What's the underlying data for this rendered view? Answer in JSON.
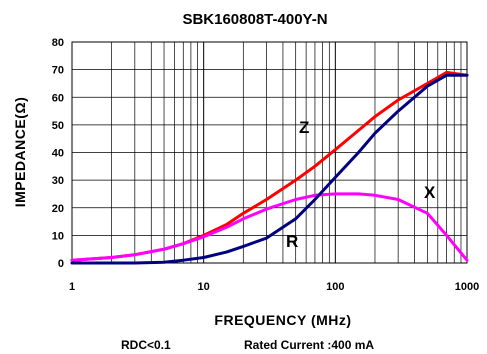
{
  "chart_data": {
    "type": "line",
    "title": "SBK160808T-400Y-N",
    "xlabel": "FREQUENCY (MHz)",
    "ylabel": "IMPEDANCE(Ω)",
    "x_scale": "log",
    "xlim": [
      1,
      1000
    ],
    "ylim": [
      0,
      80
    ],
    "x_ticks": [
      "1",
      "10",
      "100",
      "1000"
    ],
    "y_ticks": [
      "0",
      "10",
      "20",
      "30",
      "40",
      "50",
      "60",
      "70",
      "80"
    ],
    "grid": true,
    "series": [
      {
        "name": "Z",
        "color": "#ff0000",
        "x": [
          1,
          2,
          3,
          5,
          7,
          10,
          15,
          20,
          30,
          50,
          70,
          100,
          150,
          200,
          300,
          500,
          700,
          1000
        ],
        "y": [
          1,
          2,
          3,
          5,
          7,
          10,
          14,
          18,
          23,
          30,
          35,
          41,
          48,
          53,
          59,
          65,
          69,
          68
        ]
      },
      {
        "name": "X",
        "color": "#ff00ff",
        "x": [
          1,
          2,
          3,
          5,
          7,
          10,
          15,
          20,
          30,
          50,
          70,
          100,
          150,
          200,
          300,
          500,
          700,
          1000
        ],
        "y": [
          1,
          2,
          3,
          5,
          7,
          9.5,
          13,
          16,
          19.5,
          23,
          24.5,
          25,
          25,
          24.5,
          23,
          18,
          10,
          1
        ]
      },
      {
        "name": "R",
        "color": "#000080",
        "x": [
          1,
          3,
          5,
          7,
          10,
          15,
          20,
          30,
          50,
          70,
          100,
          150,
          200,
          300,
          500,
          700,
          1000
        ],
        "y": [
          0,
          0,
          0.3,
          1,
          2,
          4,
          6,
          9,
          16,
          23,
          31,
          40,
          47,
          55,
          64,
          68,
          68
        ]
      }
    ],
    "footer": {
      "rdc": "RDC<0.1",
      "rated_current": "Rated Current :400 mA"
    }
  }
}
